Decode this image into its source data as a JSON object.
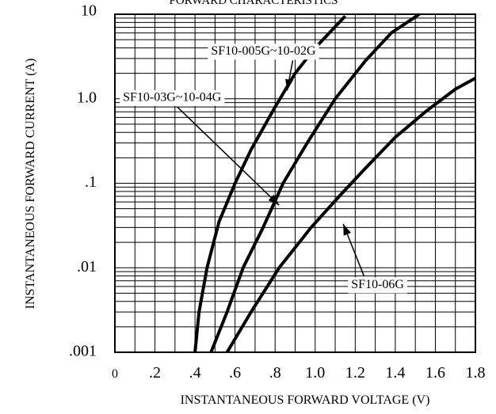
{
  "chart_data": {
    "type": "line",
    "title": "FORWARD CHARACTERISTICS",
    "xlabel": "INSTANTANEOUS FORWARD VOLTAGE (V)",
    "ylabel": "INSTANTANEOUS FORWARD CURRENT (A)",
    "xlim": [
      0,
      1.8
    ],
    "ylim": [
      0.001,
      10
    ],
    "y_scale": "log",
    "grid": true,
    "x_ticks": [
      {
        "value": 0,
        "label": "0"
      },
      {
        "value": 0.2,
        "label": ".2"
      },
      {
        "value": 0.4,
        "label": ".4"
      },
      {
        "value": 0.6,
        "label": ".6"
      },
      {
        "value": 0.8,
        "label": ".8"
      },
      {
        "value": 1.0,
        "label": "1.0"
      },
      {
        "value": 1.2,
        "label": "1.2"
      },
      {
        "value": 1.4,
        "label": "1.4"
      },
      {
        "value": 1.6,
        "label": "1.6"
      },
      {
        "value": 1.8,
        "label": "1.8"
      }
    ],
    "y_ticks": [
      {
        "value": 10,
        "label": "10"
      },
      {
        "value": 1,
        "label": "1.0"
      },
      {
        "value": 0.1,
        "label": ".1"
      },
      {
        "value": 0.01,
        "label": ".01"
      },
      {
        "value": 0.001,
        "label": ".001"
      }
    ],
    "series": [
      {
        "name": "SF10-005G~10-02G",
        "label_at": [
          0.48,
          3.6
        ],
        "arrow_to": [
          0.86,
          1.25
        ],
        "points": [
          [
            0.4,
            0.001
          ],
          [
            0.42,
            0.003
          ],
          [
            0.46,
            0.01
          ],
          [
            0.52,
            0.035
          ],
          [
            0.6,
            0.1
          ],
          [
            0.68,
            0.25
          ],
          [
            0.8,
            0.8
          ],
          [
            0.9,
            2.0
          ],
          [
            1.0,
            4.0
          ],
          [
            1.15,
            9.5
          ]
        ]
      },
      {
        "name": "SF10-03G~10-04G",
        "label_at": [
          0.04,
          1.02
        ],
        "arrow_to": [
          0.82,
          0.055
        ],
        "points": [
          [
            0.48,
            0.001
          ],
          [
            0.56,
            0.003
          ],
          [
            0.64,
            0.01
          ],
          [
            0.74,
            0.03
          ],
          [
            0.84,
            0.1
          ],
          [
            0.96,
            0.3
          ],
          [
            1.1,
            1.0
          ],
          [
            1.25,
            2.8
          ],
          [
            1.38,
            6.0
          ],
          [
            1.52,
            10.0
          ]
        ]
      },
      {
        "name": "SF10-06G",
        "label_at": [
          1.18,
          0.0062
        ],
        "arrow_to": [
          1.14,
          0.033
        ],
        "points": [
          [
            0.56,
            0.001
          ],
          [
            0.68,
            0.003
          ],
          [
            0.82,
            0.01
          ],
          [
            0.98,
            0.03
          ],
          [
            1.12,
            0.07
          ],
          [
            1.25,
            0.15
          ],
          [
            1.4,
            0.35
          ],
          [
            1.55,
            0.7
          ],
          [
            1.7,
            1.3
          ],
          [
            1.8,
            1.75
          ]
        ]
      }
    ]
  }
}
